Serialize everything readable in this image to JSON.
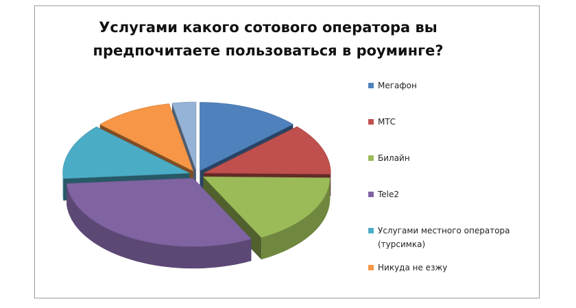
{
  "chart_data": {
    "type": "pie",
    "title_lines": [
      "Услугами какого сотового оператора вы",
      "предпочитаете пользоваться в роуминге?"
    ],
    "categories": [
      "Мегафон",
      "МТС",
      "Билайн",
      "Tele2",
      "Услугами местного оператора\n(турсимка)",
      "Никуда не езжу",
      ""
    ],
    "values": [
      13,
      12,
      17,
      31,
      13,
      10,
      3
    ],
    "colors": [
      "#4f81bd",
      "#c0504d",
      "#9bbb59",
      "#8064a2",
      "#4bacc6",
      "#f79646",
      "#95b3d7"
    ],
    "legend_position": "right",
    "three_d": true,
    "exploded": true
  }
}
